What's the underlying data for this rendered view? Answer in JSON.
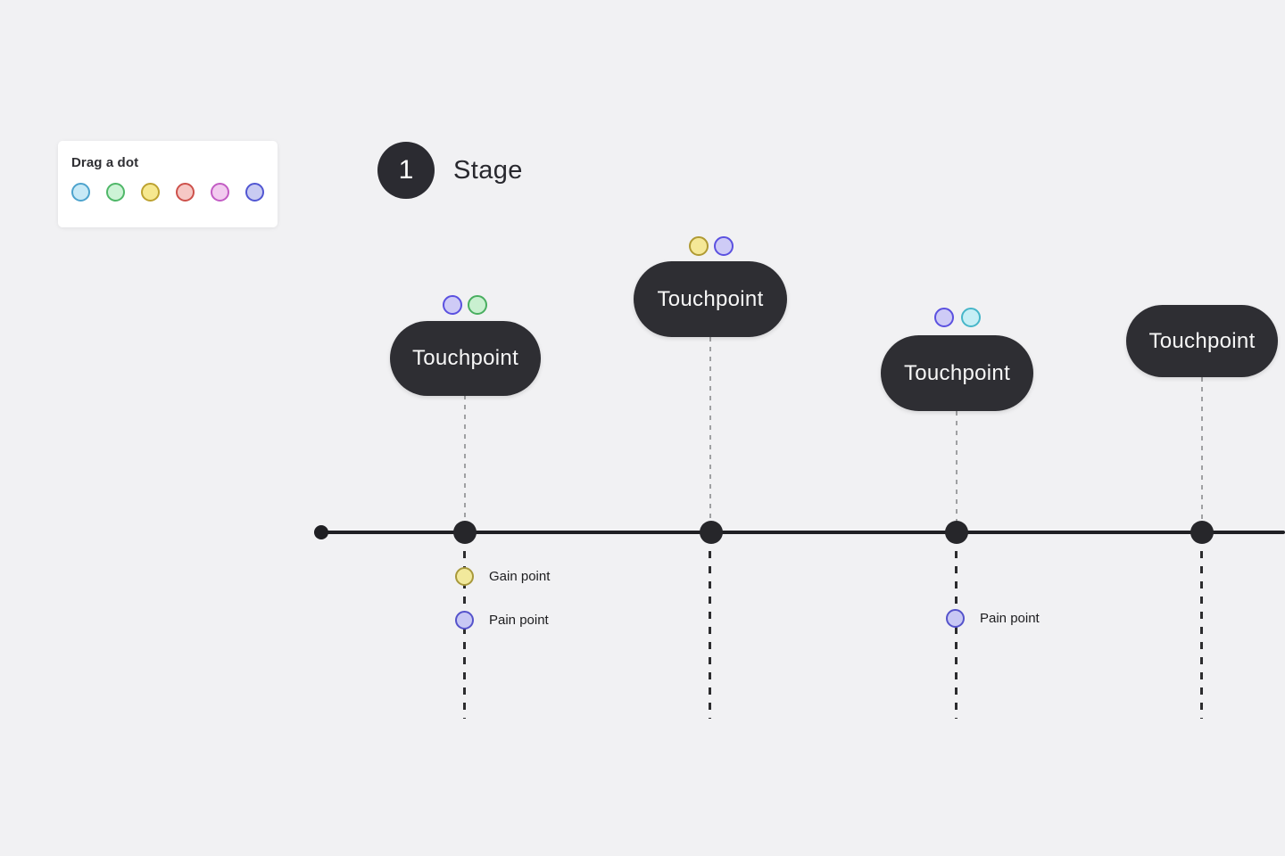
{
  "palette": {
    "title": "Drag a dot",
    "dots": [
      {
        "name": "blue",
        "fill": "#c7e9f6",
        "border": "#4da3cd",
        "css": "background:#c7e9f6;border-color:#4da3cd"
      },
      {
        "name": "green",
        "fill": "#cdf3d6",
        "border": "#4fb768",
        "css": "background:#cdf3d6;border-color:#4fb768"
      },
      {
        "name": "yellow",
        "fill": "#f6e88f",
        "border": "#bda230",
        "css": "background:#f6e88f;border-color:#bda230"
      },
      {
        "name": "red",
        "fill": "#f6c8c5",
        "border": "#cd514b",
        "css": "background:#f6c8c5;border-color:#cd514b"
      },
      {
        "name": "pink",
        "fill": "#f2cbef",
        "border": "#c25cc4",
        "css": "background:#f2cbef;border-color:#c25cc4"
      },
      {
        "name": "purple",
        "fill": "#c9cbf2",
        "border": "#5156d2",
        "css": "background:#c9cbf2;border-color:#5156d2"
      }
    ]
  },
  "stage": {
    "number": "1",
    "label": "Stage"
  },
  "touchpoints": [
    {
      "label": "Touchpoint",
      "dots": [
        {
          "name": "purple",
          "css": "background:#cecbf6;border-color:#5b51e0"
        },
        {
          "name": "green",
          "css": "background:#c9f0d0;border-color:#49ae60"
        }
      ]
    },
    {
      "label": "Touchpoint",
      "dots": [
        {
          "name": "yellow",
          "css": "background:#f5e897;border-color:#b09a33"
        },
        {
          "name": "purple",
          "css": "background:#cecbf6;border-color:#5b51e0"
        }
      ]
    },
    {
      "label": "Touchpoint",
      "dots": [
        {
          "name": "purple",
          "css": "background:#cecbf6;border-color:#5b51e0"
        },
        {
          "name": "cyan",
          "css": "background:#c6eef5;border-color:#46b6c9"
        }
      ]
    },
    {
      "label": "Touchpoint",
      "dots": []
    }
  ],
  "markers": [
    {
      "type": "gain",
      "label": "Gain point",
      "css": "background:#f2e99c;border-color:#a8993c"
    },
    {
      "type": "pain",
      "label": "Pain point",
      "css": "background:#c8c8f4;border-color:#5553cb"
    },
    {
      "type": "pain",
      "label": "Pain point",
      "css": "background:#c8c8f4;border-color:#5553cb"
    }
  ],
  "colors": {
    "background": "#f1f1f3",
    "pill": "#2e2e33",
    "ink": "#28282e",
    "timeline": "#1f1f23",
    "dash_light": "#9fa0a2",
    "dash_dark": "#2c2c2e"
  }
}
